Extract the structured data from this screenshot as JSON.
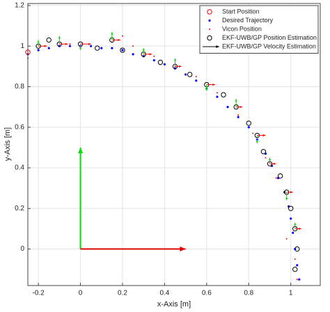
{
  "chart_data": {
    "type": "scatter",
    "xlabel": "x-Axis [m]",
    "ylabel": "y-Axis [m]",
    "xlim": [
      -0.25,
      1.14
    ],
    "ylim": [
      -0.18,
      1.21
    ],
    "xticks": [
      -0.2,
      0,
      0.2,
      0.4,
      0.6,
      0.8,
      1
    ],
    "yticks": [
      0,
      0.2,
      0.4,
      0.6,
      0.8,
      1,
      1.2
    ],
    "grid": true,
    "legend": "upper-right",
    "series": [
      {
        "name": "Start Position",
        "color": "#ff0000",
        "marker": "circle-open",
        "x": [
          -0.25
        ],
        "y": [
          0.97
        ]
      },
      {
        "name": "Desired Trajectory",
        "color": "#0000ff",
        "marker": "dot",
        "x": [
          -0.25,
          -0.2,
          -0.15,
          -0.1,
          -0.05,
          0,
          0.05,
          0.1,
          0.15,
          0.2,
          0.25,
          0.3,
          0.35,
          0.4,
          0.45,
          0.5,
          0.55,
          0.6,
          0.65,
          0.7,
          0.75,
          0.8,
          0.84,
          0.88,
          0.91,
          0.94,
          0.97,
          0.99,
          1.0,
          1.01,
          1.02,
          1.03,
          1.04
        ],
        "y": [
          0.96,
          0.98,
          0.99,
          1.0,
          1.0,
          1.0,
          1.0,
          0.99,
          0.99,
          0.98,
          0.96,
          0.95,
          0.93,
          0.91,
          0.89,
          0.86,
          0.83,
          0.79,
          0.75,
          0.7,
          0.65,
          0.6,
          0.54,
          0.47,
          0.41,
          0.35,
          0.28,
          0.21,
          0.15,
          0.08,
          0.0,
          -0.08,
          -0.15
        ]
      },
      {
        "name": "Vicon Position",
        "color": "#ff0000",
        "marker": "small-dot",
        "x": [
          -0.25,
          -0.15,
          -0.05,
          0.05,
          0.15,
          0.2,
          0.25,
          0.35,
          0.45,
          0.55,
          0.65,
          0.75,
          0.82,
          0.88,
          0.93,
          0.98,
          1.0,
          0.98,
          1.02,
          1.03
        ],
        "y": [
          0.94,
          0.99,
          1.01,
          1.0,
          1.02,
          1.05,
          1.0,
          0.95,
          0.9,
          0.85,
          0.77,
          0.66,
          0.57,
          0.45,
          0.35,
          0.25,
          0.15,
          0.05,
          -0.05,
          -0.15
        ]
      },
      {
        "name": "EKF-UWB/GP Position Estimation",
        "color": "#000000",
        "marker": "circle-open",
        "x": [
          -0.2,
          -0.15,
          -0.1,
          0.0,
          0.08,
          0.15,
          0.2,
          0.3,
          0.38,
          0.45,
          0.52,
          0.6,
          0.68,
          0.74,
          0.8,
          0.84,
          0.87,
          0.9,
          0.95,
          0.98,
          1.0,
          1.02,
          1.03,
          1.02
        ],
        "y": [
          1.0,
          1.03,
          1.01,
          1.01,
          0.99,
          1.03,
          0.98,
          0.96,
          0.92,
          0.9,
          0.86,
          0.81,
          0.76,
          0.7,
          0.62,
          0.56,
          0.48,
          0.42,
          0.36,
          0.28,
          0.2,
          0.1,
          0.0,
          -0.1
        ]
      },
      {
        "name": "EKF-UWB/GP Velocity Estimation",
        "color": "#000000",
        "marker": "arrow",
        "u_color": "#ff0000",
        "v_color": "#00dd00",
        "x": [
          -0.2,
          -0.1,
          0.0,
          0.15,
          0.3,
          0.45,
          0.6,
          0.74,
          0.84,
          0.9,
          0.98,
          1.02
        ],
        "y": [
          1.0,
          1.01,
          1.01,
          1.03,
          0.96,
          0.9,
          0.81,
          0.7,
          0.56,
          0.42,
          0.28,
          0.1
        ],
        "u": [
          0.04,
          0.04,
          0.05,
          0.04,
          0.04,
          0.03,
          0.04,
          0.03,
          0.04,
          0.03,
          0.03,
          0.03
        ],
        "v": [
          0.03,
          0.04,
          -0.03,
          0.04,
          0.03,
          0.04,
          -0.03,
          0.04,
          -0.04,
          0.03,
          -0.04,
          0.03
        ]
      }
    ],
    "frame_arrows": [
      {
        "x": 0,
        "y": 0,
        "dx": 0,
        "dy": 0.5,
        "color": "#00dd00"
      },
      {
        "x": 0,
        "y": 0,
        "dx": 0.5,
        "dy": 0,
        "color": "#e00000"
      }
    ]
  }
}
